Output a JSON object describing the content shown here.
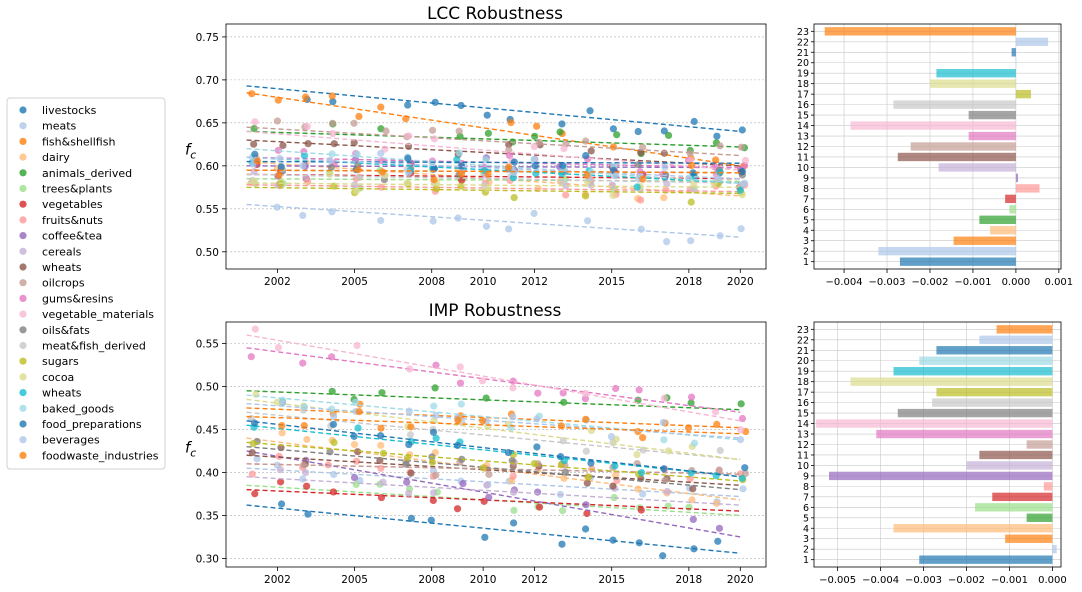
{
  "legend": [
    {
      "name": "livestocks",
      "color": "#1f77b4"
    },
    {
      "name": "meats",
      "color": "#aec7e8"
    },
    {
      "name": "fish&shellfish",
      "color": "#ff7f0e"
    },
    {
      "name": "dairy",
      "color": "#ffbb78"
    },
    {
      "name": "animals_derived",
      "color": "#2ca02c"
    },
    {
      "name": "trees&plants",
      "color": "#98df8a"
    },
    {
      "name": "vegetables",
      "color": "#d62728"
    },
    {
      "name": "fruits&nuts",
      "color": "#ff9896"
    },
    {
      "name": "coffee&tea",
      "color": "#9467bd"
    },
    {
      "name": "cereals",
      "color": "#c5b0d5"
    },
    {
      "name": "wheats",
      "color": "#8c564b"
    },
    {
      "name": "oilcrops",
      "color": "#c49c94"
    },
    {
      "name": "gums&resins",
      "color": "#e377c2"
    },
    {
      "name": "vegetable_materials",
      "color": "#f7b6d2"
    },
    {
      "name": "oils&fats",
      "color": "#7f7f7f"
    },
    {
      "name": "meat&fish_derived",
      "color": "#c7c7c7"
    },
    {
      "name": "sugars",
      "color": "#bcbd22"
    },
    {
      "name": "cocoa",
      "color": "#dbdb8d"
    },
    {
      "name": "wheats",
      "color": "#17becf"
    },
    {
      "name": "baked_goods",
      "color": "#9edae5"
    },
    {
      "name": "food_preparations",
      "color": "#1f77b4"
    },
    {
      "name": "beverages",
      "color": "#aec7e8"
    },
    {
      "name": "foodwaste_industries",
      "color": "#ff7f0e"
    }
  ],
  "chart_data": [
    {
      "type": "scatter",
      "title": "LCC Robustness",
      "ylabel": "f_c",
      "xlim": [
        2000,
        2021
      ],
      "ylim": [
        0.48,
        0.765
      ],
      "xticks": [
        2002,
        2005,
        2008,
        2010,
        2012,
        2015,
        2018,
        2020
      ],
      "yticks": [
        0.5,
        0.55,
        0.6,
        0.65,
        0.7,
        0.75
      ],
      "ytick_labels": [
        "0.50",
        "0.55",
        "0.60",
        "0.65",
        "0.70",
        "0.75"
      ],
      "x": [
        2001,
        2002,
        2003,
        2004,
        2005,
        2006,
        2007,
        2008,
        2009,
        2010,
        2011,
        2012,
        2013,
        2014,
        2015,
        2016,
        2017,
        2018,
        2019,
        2020
      ],
      "grid": true,
      "series": [
        {
          "start": 0.693,
          "end": 0.64
        },
        {
          "start": 0.555,
          "end": 0.517
        },
        {
          "start": 0.685,
          "end": 0.6
        },
        {
          "start": 0.605,
          "end": 0.565
        },
        {
          "start": 0.64,
          "end": 0.622
        },
        {
          "start": 0.585,
          "end": 0.582
        },
        {
          "start": 0.59,
          "end": 0.585
        },
        {
          "start": 0.578,
          "end": 0.57
        },
        {
          "start": 0.6,
          "end": 0.598
        },
        {
          "start": 0.59,
          "end": 0.58
        },
        {
          "start": 0.63,
          "end": 0.6
        },
        {
          "start": 0.645,
          "end": 0.612
        },
        {
          "start": 0.61,
          "end": 0.598
        },
        {
          "start": 0.64,
          "end": 0.595
        },
        {
          "start": 0.595,
          "end": 0.592
        },
        {
          "start": 0.59,
          "end": 0.58
        },
        {
          "start": 0.575,
          "end": 0.568
        },
        {
          "start": 0.58,
          "end": 0.575
        },
        {
          "start": 0.61,
          "end": 0.58
        },
        {
          "start": 0.62,
          "end": 0.58
        },
        {
          "start": 0.605,
          "end": 0.603
        },
        {
          "start": 0.61,
          "end": 0.585
        },
        {
          "start": 0.595,
          "end": 0.592
        }
      ]
    },
    {
      "type": "bar",
      "orientation": "horizontal",
      "categories": [
        "1",
        "2",
        "3",
        "4",
        "5",
        "6",
        "7",
        "8",
        "9",
        "10",
        "11",
        "12",
        "13",
        "14",
        "15",
        "16",
        "17",
        "18",
        "19",
        "20",
        "21",
        "22",
        "23"
      ],
      "values": [
        -0.0027,
        -0.0032,
        -0.00145,
        -0.0006,
        -0.00085,
        -0.00015,
        -0.00025,
        0.00055,
        5e-05,
        -0.0018,
        -0.00275,
        -0.00245,
        -0.0011,
        -0.00385,
        -0.0011,
        -0.00285,
        0.00035,
        -0.002,
        -0.00185,
        0.0,
        -0.0001,
        0.00075,
        -0.00445
      ],
      "xlim": [
        -0.0047,
        0.00105
      ],
      "xticks": [
        -0.004,
        -0.003,
        -0.002,
        -0.001,
        0.0,
        0.001
      ],
      "xtick_labels": [
        "−0.004",
        "−0.003",
        "−0.002",
        "−0.001",
        "0.000",
        "0.001"
      ],
      "grid": true
    },
    {
      "type": "scatter",
      "title": "IMP Robustness",
      "ylabel": "f_c",
      "xlim": [
        2000,
        2021
      ],
      "ylim": [
        0.29,
        0.575
      ],
      "xticks": [
        2002,
        2005,
        2008,
        2010,
        2012,
        2015,
        2018,
        2020
      ],
      "yticks": [
        0.3,
        0.35,
        0.4,
        0.45,
        0.5,
        0.55
      ],
      "ytick_labels": [
        "0.30",
        "0.35",
        "0.40",
        "0.45",
        "0.50",
        "0.55"
      ],
      "x": [
        2001,
        2002,
        2003,
        2004,
        2005,
        2006,
        2007,
        2008,
        2009,
        2010,
        2011,
        2012,
        2013,
        2014,
        2015,
        2016,
        2017,
        2018,
        2019,
        2020
      ],
      "grid": true,
      "series": [
        {
          "start": 0.362,
          "end": 0.306
        },
        {
          "start": 0.405,
          "end": 0.372
        },
        {
          "start": 0.475,
          "end": 0.452
        },
        {
          "start": 0.44,
          "end": 0.368
        },
        {
          "start": 0.495,
          "end": 0.473
        },
        {
          "start": 0.385,
          "end": 0.35
        },
        {
          "start": 0.38,
          "end": 0.355
        },
        {
          "start": 0.41,
          "end": 0.398
        },
        {
          "start": 0.425,
          "end": 0.325
        },
        {
          "start": 0.395,
          "end": 0.362
        },
        {
          "start": 0.42,
          "end": 0.385
        },
        {
          "start": 0.41,
          "end": 0.398
        },
        {
          "start": 0.545,
          "end": 0.47
        },
        {
          "start": 0.56,
          "end": 0.46
        },
        {
          "start": 0.43,
          "end": 0.38
        },
        {
          "start": 0.47,
          "end": 0.415
        },
        {
          "start": 0.435,
          "end": 0.39
        },
        {
          "start": 0.485,
          "end": 0.415
        },
        {
          "start": 0.455,
          "end": 0.395
        },
        {
          "start": 0.49,
          "end": 0.438
        },
        {
          "start": 0.46,
          "end": 0.395
        },
        {
          "start": 0.48,
          "end": 0.44
        },
        {
          "start": 0.465,
          "end": 0.445
        }
      ]
    },
    {
      "type": "bar",
      "orientation": "horizontal",
      "categories": [
        "1",
        "2",
        "3",
        "4",
        "5",
        "6",
        "7",
        "8",
        "9",
        "10",
        "11",
        "12",
        "13",
        "14",
        "15",
        "16",
        "17",
        "18",
        "19",
        "20",
        "21",
        "22",
        "23"
      ],
      "values": [
        -0.0031,
        0.0001,
        -0.0011,
        -0.0037,
        -0.0006,
        -0.0018,
        -0.0014,
        -0.0002,
        -0.0052,
        -0.002,
        -0.0017,
        -0.0006,
        -0.0041,
        -0.0055,
        -0.0036,
        -0.0028,
        -0.0027,
        -0.0047,
        -0.0037,
        -0.0031,
        -0.0027,
        -0.0017,
        -0.0013
      ],
      "xlim": [
        -0.00555,
        0.0002
      ],
      "xticks": [
        -0.005,
        -0.004,
        -0.003,
        -0.002,
        -0.001,
        0.0
      ],
      "xtick_labels": [
        "−0.005",
        "−0.004",
        "−0.003",
        "−0.002",
        "−0.001",
        "0.000"
      ],
      "grid": true
    }
  ]
}
